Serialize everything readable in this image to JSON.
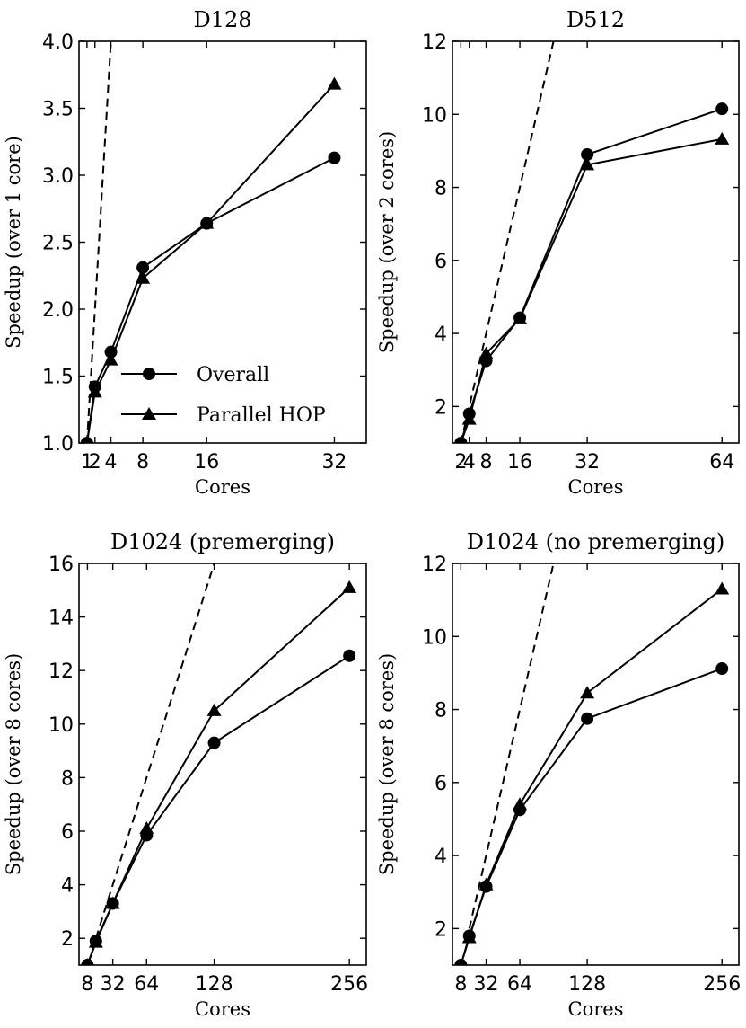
{
  "chart_data": [
    {
      "type": "line",
      "title": "D128",
      "xlabel": "Cores",
      "ylabel": "Speedup (over 1 core)",
      "xlim": [
        0,
        36
      ],
      "ylim": [
        1.0,
        4.0
      ],
      "xticks": [
        1,
        2,
        4,
        8,
        16,
        32
      ],
      "xtick_labels": [
        "1",
        "2",
        "4",
        "8",
        "16",
        "32"
      ],
      "yticks": [
        1.0,
        1.5,
        2.0,
        2.5,
        3.0,
        3.5,
        4.0
      ],
      "ytick_labels": [
        "1.0",
        "1.5",
        "2.0",
        "2.5",
        "3.0",
        "3.5",
        "4.0"
      ],
      "x": [
        1,
        2,
        4,
        8,
        16,
        32
      ],
      "series": [
        {
          "name": "Overall",
          "marker": "circle",
          "values": [
            1.0,
            1.42,
            1.68,
            2.31,
            2.64,
            3.13
          ]
        },
        {
          "name": "Parallel HOP",
          "marker": "triangle",
          "values": [
            1.0,
            1.38,
            1.62,
            2.23,
            2.64,
            3.68
          ]
        }
      ],
      "ideal_line": {
        "style": "dashed",
        "x": [
          1,
          4
        ],
        "y": [
          1.0,
          4.0
        ]
      },
      "legend": {
        "placement": "lower-center",
        "entries": [
          "Overall",
          "Parallel HOP"
        ]
      },
      "grid": false
    },
    {
      "type": "line",
      "title": "D512",
      "xlabel": "Cores",
      "ylabel": "Speedup (over 2 cores)",
      "xlim": [
        0,
        68
      ],
      "ylim": [
        1,
        12
      ],
      "xticks": [
        2,
        4,
        8,
        16,
        32,
        64
      ],
      "xtick_labels": [
        "2",
        "4",
        "8",
        "16",
        "32",
        "64"
      ],
      "yticks": [
        2,
        4,
        6,
        8,
        10,
        12
      ],
      "ytick_labels": [
        "2",
        "4",
        "6",
        "8",
        "10",
        "12"
      ],
      "x": [
        2,
        4,
        8,
        16,
        32,
        64
      ],
      "series": [
        {
          "name": "Overall",
          "marker": "circle",
          "values": [
            1.0,
            1.8,
            3.25,
            4.43,
            8.9,
            10.15
          ]
        },
        {
          "name": "Parallel HOP",
          "marker": "triangle",
          "values": [
            1.0,
            1.65,
            3.45,
            4.4,
            8.62,
            9.32
          ]
        }
      ],
      "ideal_line": {
        "style": "dashed",
        "x": [
          2,
          24
        ],
        "y": [
          1,
          12
        ]
      },
      "grid": false
    },
    {
      "type": "line",
      "title": "D1024 (premerging)",
      "xlabel": "Cores",
      "ylabel": "Speedup (over 8 cores)",
      "xlim": [
        0,
        272
      ],
      "ylim": [
        1,
        16
      ],
      "xticks": [
        8,
        32,
        64,
        128,
        256
      ],
      "xtick_labels": [
        "8",
        "32",
        "64",
        "128",
        "256"
      ],
      "yticks": [
        2,
        4,
        6,
        8,
        10,
        12,
        14,
        16
      ],
      "ytick_labels": [
        "2",
        "4",
        "6",
        "8",
        "10",
        "12",
        "14",
        "16"
      ],
      "x": [
        8,
        16,
        32,
        64,
        128,
        256
      ],
      "series": [
        {
          "name": "Overall",
          "marker": "circle",
          "values": [
            1.0,
            1.9,
            3.3,
            5.85,
            9.3,
            12.55
          ]
        },
        {
          "name": "Parallel HOP",
          "marker": "triangle",
          "values": [
            1.0,
            1.85,
            3.3,
            6.1,
            10.5,
            15.1
          ]
        }
      ],
      "ideal_line": {
        "style": "dashed",
        "x": [
          16,
          128
        ],
        "y": [
          2,
          16
        ]
      },
      "grid": false
    },
    {
      "type": "line",
      "title": "D1024 (no premerging)",
      "xlabel": "Cores",
      "ylabel": "Speedup (over 8 cores)",
      "xlim": [
        0,
        272
      ],
      "ylim": [
        1,
        12
      ],
      "xticks": [
        8,
        32,
        64,
        128,
        256
      ],
      "xtick_labels": [
        "8",
        "32",
        "64",
        "128",
        "256"
      ],
      "yticks": [
        2,
        4,
        6,
        8,
        10,
        12
      ],
      "ytick_labels": [
        "2",
        "4",
        "6",
        "8",
        "10",
        "12"
      ],
      "x": [
        8,
        16,
        32,
        64,
        128,
        256
      ],
      "series": [
        {
          "name": "Overall",
          "marker": "circle",
          "values": [
            1.0,
            1.8,
            3.15,
            5.25,
            7.75,
            9.12
          ]
        },
        {
          "name": "Parallel HOP",
          "marker": "triangle",
          "values": [
            1.0,
            1.75,
            3.2,
            5.4,
            8.45,
            11.3
          ]
        }
      ],
      "ideal_line": {
        "style": "dashed",
        "x": [
          16,
          96
        ],
        "y": [
          2,
          12
        ]
      },
      "grid": false
    }
  ]
}
